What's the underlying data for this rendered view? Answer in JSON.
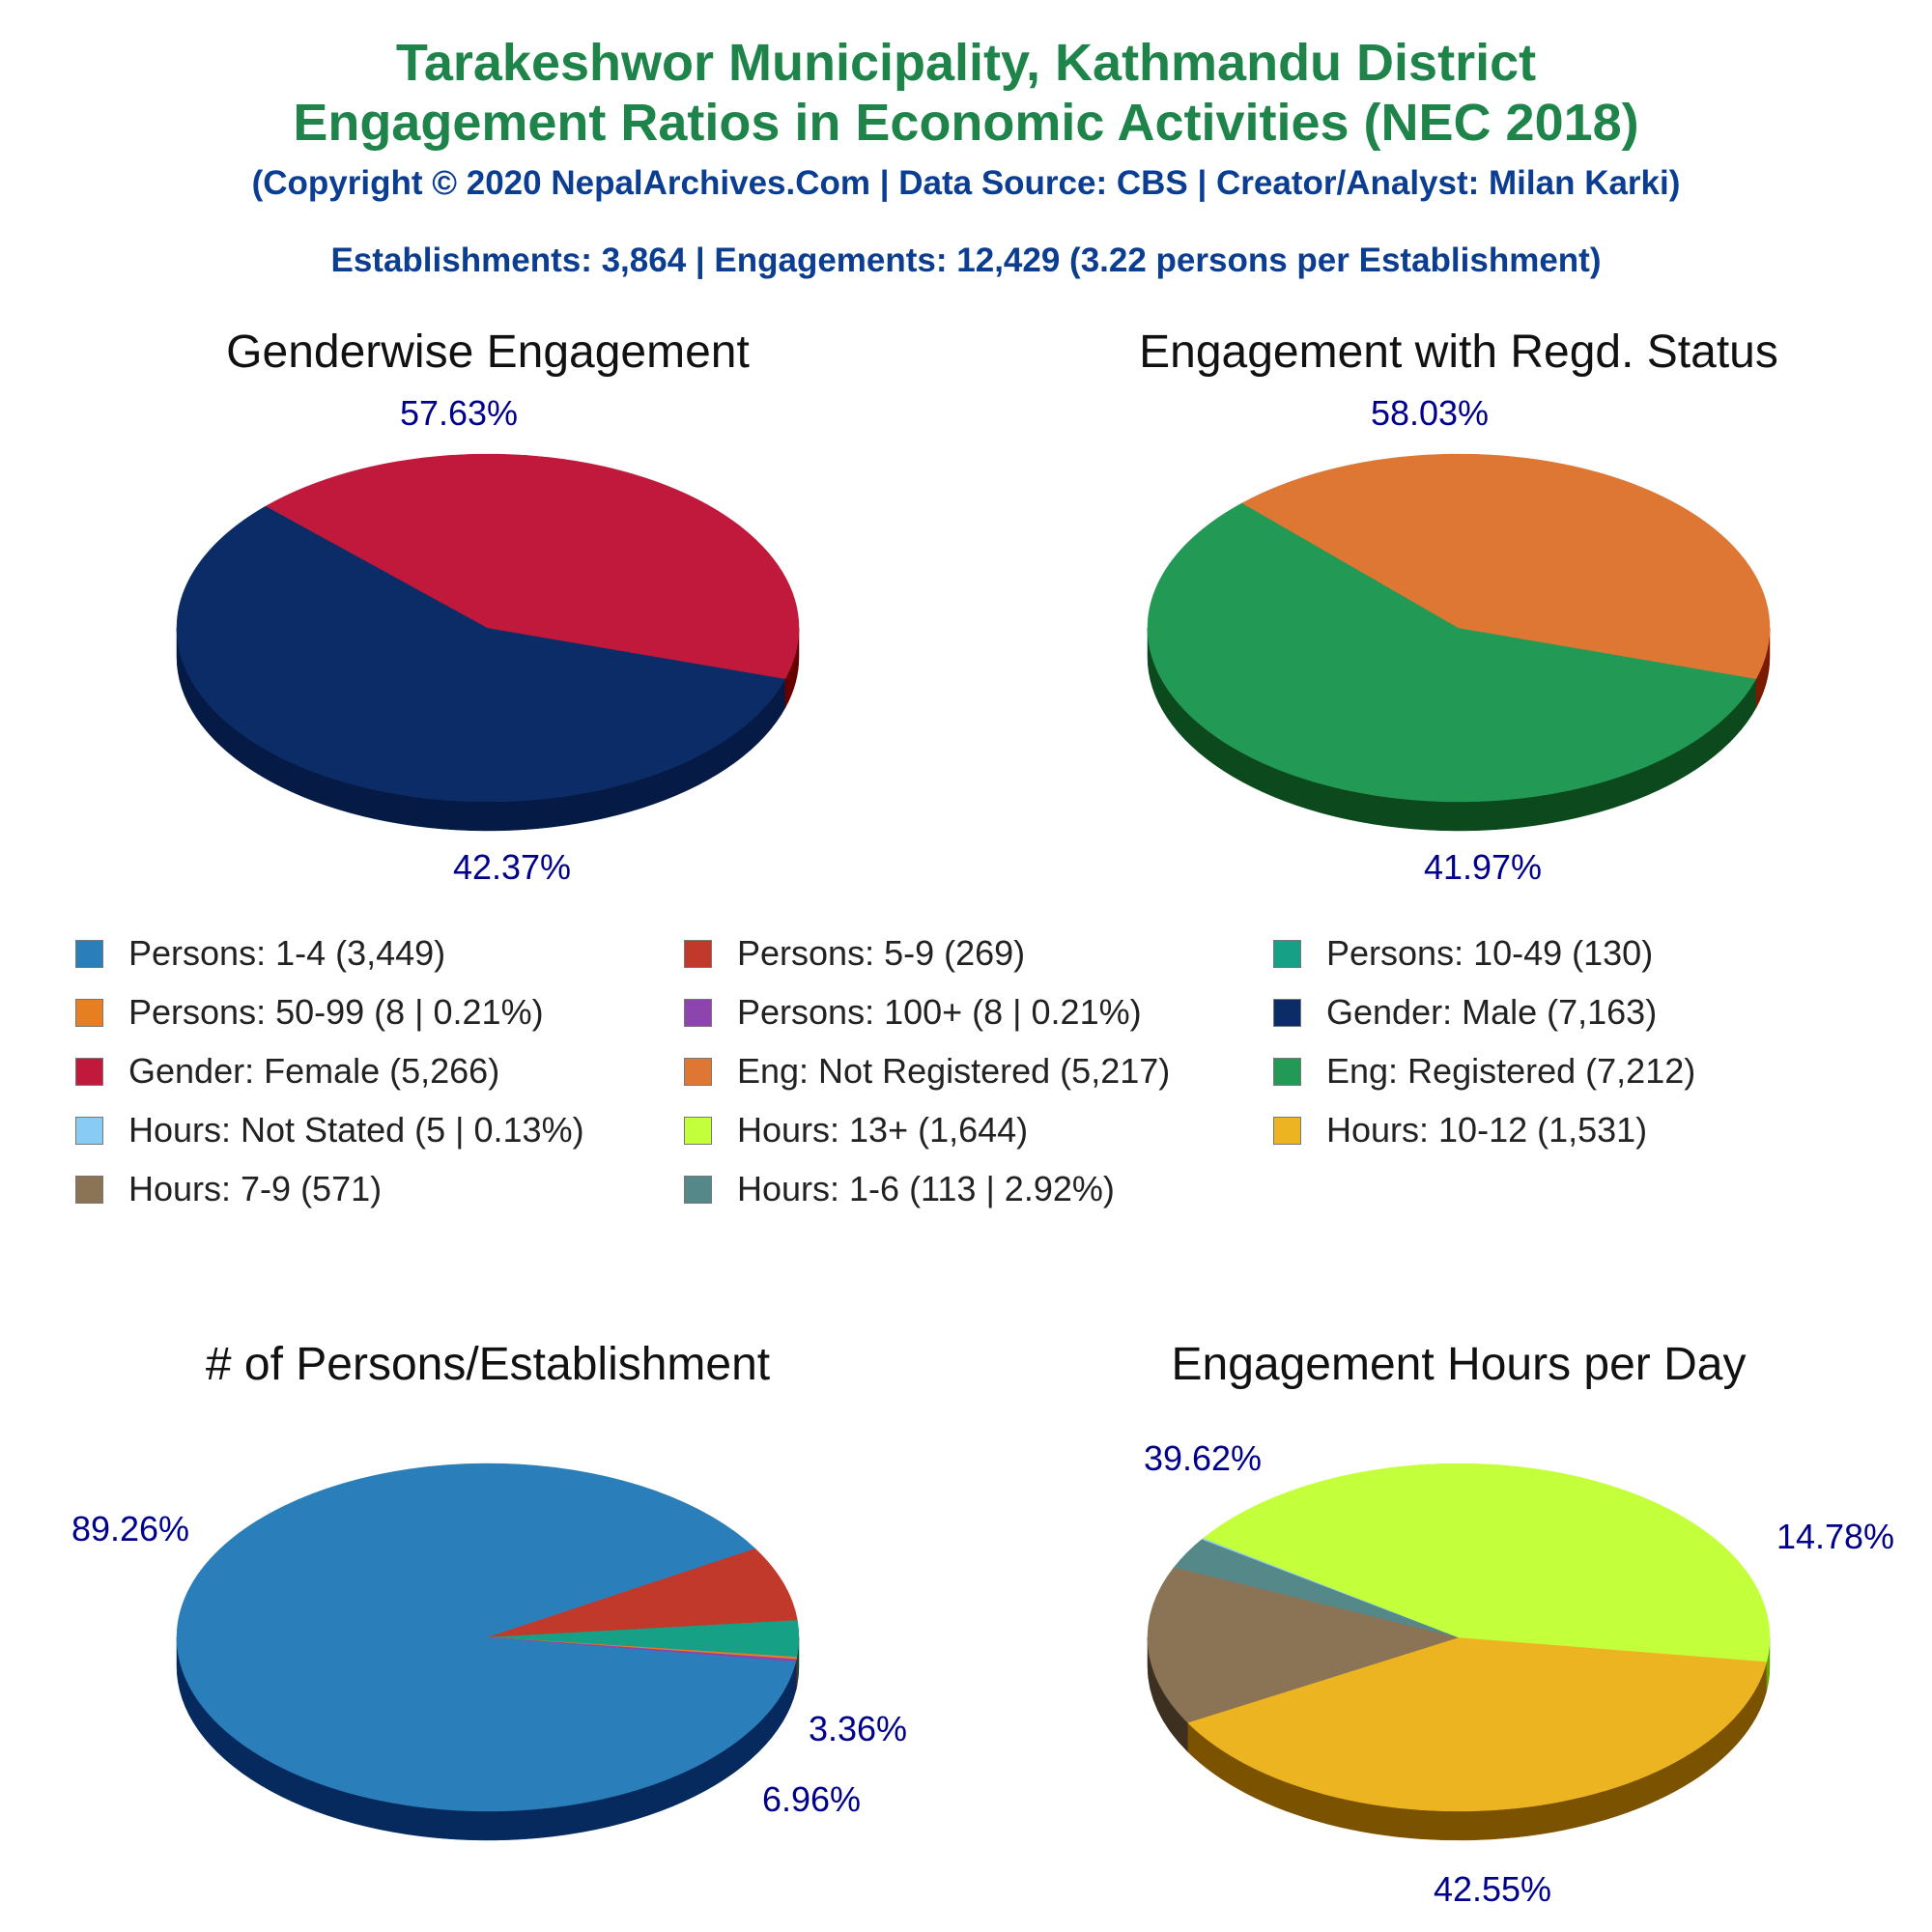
{
  "title_line1": "Tarakeshwor Municipality, Kathmandu District",
  "title_line2": "Engagement Ratios in Economic Activities (NEC 2018)",
  "copyright": "(Copyright © 2020 NepalArchives.Com | Data Source: CBS | Creator/Analyst: Milan Karki)",
  "summary": "Establishments: 3,864 | Engagements: 12,429 (3.22 persons per Establishment)",
  "legend": [
    {
      "label": "Persons: 1-4 (3,449)",
      "color": "#2a7fba"
    },
    {
      "label": "Persons: 5-9 (269)",
      "color": "#c0392b"
    },
    {
      "label": "Persons: 10-49 (130)",
      "color": "#16a085"
    },
    {
      "label": "Persons: 50-99 (8 | 0.21%)",
      "color": "#e67e22"
    },
    {
      "label": "Persons: 100+ (8 | 0.21%)",
      "color": "#8e44ad"
    },
    {
      "label": "Gender: Male (7,163)",
      "color": "#0b2c66"
    },
    {
      "label": "Gender: Female (5,266)",
      "color": "#c0193c"
    },
    {
      "label": "Eng: Not Registered (5,217)",
      "color": "#dd7733"
    },
    {
      "label": "Eng: Registered (7,212)",
      "color": "#229955"
    },
    {
      "label": "Hours: Not Stated (5 | 0.13%)",
      "color": "#88ccf5"
    },
    {
      "label": "Hours: 13+ (1,644)",
      "color": "#c4ff3c"
    },
    {
      "label": "Hours: 10-12 (1,531)",
      "color": "#edb422"
    },
    {
      "label": "Hours: 7-9 (571)",
      "color": "#8b7355"
    },
    {
      "label": "Hours: 1-6 (113 | 2.92%)",
      "color": "#558888"
    }
  ],
  "chart_data": [
    {
      "type": "pie",
      "title": "Genderwise Engagement",
      "slices": [
        {
          "name": "Gender: Male",
          "value": 7163,
          "percent_label": "57.63%",
          "color": "#0b2c66",
          "side_color": "#051a44"
        },
        {
          "name": "Gender: Female",
          "value": 5266,
          "percent_label": "42.37%",
          "color": "#c0193c",
          "side_color": "#660000"
        }
      ]
    },
    {
      "type": "pie",
      "title": "Engagement with Regd. Status",
      "slices": [
        {
          "name": "Eng: Registered",
          "value": 7212,
          "percent_label": "58.03%",
          "color": "#229955",
          "side_color": "#0c4a1e"
        },
        {
          "name": "Eng: Not Registered",
          "value": 5217,
          "percent_label": "41.97%",
          "color": "#dd7733",
          "side_color": "#7a1a00"
        }
      ]
    },
    {
      "type": "pie",
      "title": "# of Persons/Establishment",
      "slices": [
        {
          "name": "Persons: 1-4",
          "value": 3449,
          "percent_label": "89.26%",
          "color": "#2a7fba",
          "side_color": "#062a5e"
        },
        {
          "name": "Persons: 5-9",
          "value": 269,
          "percent_label": "6.96%",
          "color": "#c0392b",
          "side_color": "#6b0000"
        },
        {
          "name": "Persons: 10-49",
          "value": 130,
          "percent_label": "3.36%",
          "color": "#16a085",
          "side_color": "#0a4a3a"
        },
        {
          "name": "Persons: 50-99",
          "value": 8,
          "percent_label": "",
          "color": "#e67e22",
          "side_color": "#7a3a00"
        },
        {
          "name": "Persons: 100+",
          "value": 8,
          "percent_label": "",
          "color": "#8e44ad",
          "side_color": "#3e1050"
        }
      ]
    },
    {
      "type": "pie",
      "title": "Engagement Hours per Day",
      "slices": [
        {
          "name": "Hours: 10-12",
          "value": 1531,
          "percent_label": "39.62%",
          "color": "#edb422",
          "side_color": "#7a5200"
        },
        {
          "name": "Hours: 7-9",
          "value": 571,
          "percent_label": "14.78%",
          "color": "#8b7355",
          "side_color": "#3e3020"
        },
        {
          "name": "Hours: 1-6",
          "value": 113,
          "percent_label": "",
          "color": "#558888",
          "side_color": "#1e3e3e"
        },
        {
          "name": "Hours: Not Stated",
          "value": 5,
          "percent_label": "",
          "color": "#88ccf5",
          "side_color": "#3a6a8a"
        },
        {
          "name": "Hours: 13+",
          "value": 1644,
          "percent_label": "42.55%",
          "color": "#c4ff3c",
          "side_color": "#66a600"
        }
      ]
    }
  ]
}
